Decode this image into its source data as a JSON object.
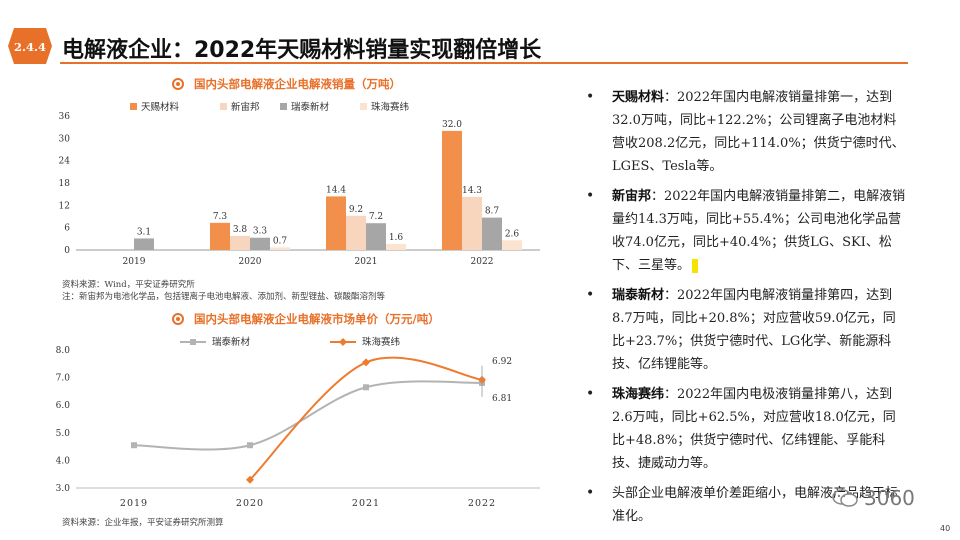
{
  "header": {
    "section_number": "2.4.4",
    "title": "电解液企业：2022年天赐材料销量实现翻倍增长",
    "accent_color": "#e8712a"
  },
  "chart1": {
    "caption": "国内头部电解液企业电解液销量（万吨）",
    "source_note": "资料来源：Wind，平安证券研究所",
    "footnote": "注：新宙邦为电池化学品，包括锂离子电池电解液、添加剂、新型锂盐、碳酸酯溶剂等"
  },
  "chart2": {
    "caption": "国内头部电解液企业电解液市场单价（万元/吨）",
    "source_note": "资料来源：企业年报，平安证券研究所测算"
  },
  "chart_data": [
    {
      "type": "bar",
      "title": "国内头部电解液企业电解液销量（万吨）",
      "categories": [
        "2019",
        "2020",
        "2021",
        "2022"
      ],
      "ylim": [
        0,
        36
      ],
      "yticks": [
        "0",
        "6",
        "12",
        "18",
        "24",
        "30",
        "36"
      ],
      "legend_position": "top",
      "series": [
        {
          "name": "天赐材料",
          "color": "#f28f4a",
          "values": [
            null,
            7.3,
            14.4,
            32.0
          ],
          "labels": [
            "",
            "7.3",
            "14.4",
            "32.0"
          ]
        },
        {
          "name": "新宙邦",
          "color": "#f8d6bd",
          "values": [
            null,
            3.8,
            9.2,
            14.3
          ],
          "labels": [
            "",
            "3.8",
            "9.2",
            "14.3"
          ]
        },
        {
          "name": "瑞泰新材",
          "color": "#a6a6a6",
          "values": [
            3.1,
            3.3,
            7.2,
            8.7
          ],
          "labels": [
            "3.1",
            "3.3",
            "7.2",
            "8.7"
          ]
        },
        {
          "name": "珠海赛纬",
          "color": "#fbe3d0",
          "values": [
            null,
            0.7,
            1.6,
            2.6
          ],
          "labels": [
            "",
            "0.7",
            "1.6",
            "2.6"
          ]
        }
      ]
    },
    {
      "type": "line",
      "title": "国内头部电解液企业电解液市场单价（万元/吨）",
      "categories": [
        "2019",
        "2020",
        "2021",
        "2022"
      ],
      "ylim": [
        3.0,
        8.0
      ],
      "yticks": [
        "3.0",
        "4.0",
        "5.0",
        "6.0",
        "7.0",
        "8.0"
      ],
      "legend_position": "top",
      "series": [
        {
          "name": "瑞泰新材",
          "color": "#b3b3b3",
          "values": [
            4.55,
            4.55,
            6.65,
            6.81
          ],
          "end_label": "6.81"
        },
        {
          "name": "珠海赛纬",
          "color": "#ee7b30",
          "values": [
            null,
            3.3,
            7.55,
            6.92
          ],
          "end_label": "6.92"
        }
      ]
    }
  ],
  "bullets": [
    {
      "name": "天赐材料",
      "text": "：2022年国内电解液销量排第一，达到32.0万吨，同比+122.2%；公司锂离子电池材料营收208.2亿元，同比+114.0%；供货宁德时代、LGES、Tesla等。"
    },
    {
      "name": "新宙邦",
      "text": "：2022年国内电解液销量排第二，电解液销量约14.3万吨，同比+55.4%；公司电池化学品营收74.0亿元，同比+40.4%；供货LG、SKI、松下、三星等。"
    },
    {
      "name": "瑞泰新材",
      "text": "：2022年国内电解液销量排第四，达到8.7万吨，同比+20.8%；对应营收59.0亿元，同比+23.7%；供货宁德时代、LG化学、新能源科技、亿纬锂能等。"
    },
    {
      "name": "珠海赛纬",
      "text": "：2022年国内电极液销量排第八，达到2.6万吨，同比+62.5%，对应营收18.0亿元，同比+48.8%；供货宁德时代、亿纬锂能、孚能科技、捷威动力等。"
    },
    {
      "name": "",
      "text": "头部企业电解液单价差距缩小，电解液产品趋于标准化。"
    }
  ],
  "bullet_glyph": "•",
  "watermark": "3060",
  "page_number": "40"
}
